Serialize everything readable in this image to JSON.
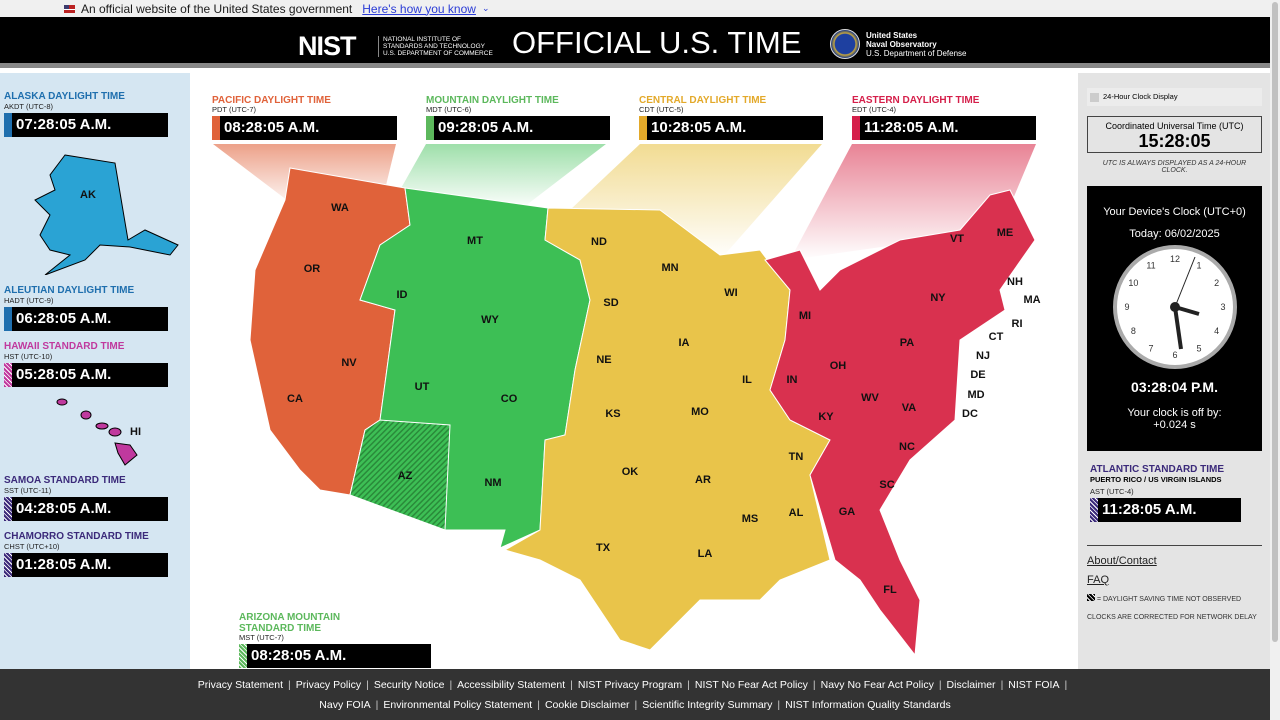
{
  "banner": {
    "text": "An official website of the United States government",
    "link": "Here's how you know"
  },
  "header": {
    "nist_logo": "NIST",
    "nist_sub": [
      "NATIONAL INSTITUTE OF",
      "STANDARDS AND TECHNOLOGY",
      "U.S. DEPARTMENT OF COMMERCE"
    ],
    "title": "OFFICIAL U.S. TIME",
    "usno": [
      "United States",
      "Naval Observatory",
      "U.S. Department of Defense"
    ]
  },
  "zones": {
    "alaska": {
      "name": "ALASKA DAYLIGHT TIME",
      "abbr": "AKDT (UTC-8)",
      "time": "07:28:05 A.M.",
      "color": "#1f6fae"
    },
    "aleutian": {
      "name": "ALEUTIAN DAYLIGHT TIME",
      "abbr": "HADT (UTC-9)",
      "time": "06:28:05 A.M.",
      "color": "#1f6fae"
    },
    "hawaii": {
      "name": "HAWAII STANDARD TIME",
      "abbr": "HST (UTC-10)",
      "time": "05:28:05 A.M.",
      "color": "#c0399e"
    },
    "samoa": {
      "name": "SAMOA STANDARD TIME",
      "abbr": "SST (UTC-11)",
      "time": "04:28:05 A.M.",
      "color": "#3b2a7a"
    },
    "chamorro": {
      "name": "CHAMORRO STANDARD TIME",
      "abbr": "CHST (UTC+10)",
      "time": "01:28:05 A.M.",
      "color": "#3b2a7a"
    },
    "pacific": {
      "name": "PACIFIC DAYLIGHT TIME",
      "abbr": "PDT (UTC-7)",
      "time": "08:28:05 A.M.",
      "color": "#e0623a"
    },
    "mountain": {
      "name": "MOUNTAIN DAYLIGHT TIME",
      "abbr": "MDT (UTC-6)",
      "time": "09:28:05 A.M.",
      "color": "#5cb85c"
    },
    "central": {
      "name": "CENTRAL DAYLIGHT TIME",
      "abbr": "CDT (UTC-5)",
      "time": "10:28:05 A.M.",
      "color": "#e3a92a"
    },
    "eastern": {
      "name": "EASTERN DAYLIGHT TIME",
      "abbr": "EDT (UTC-4)",
      "time": "11:28:05 A.M.",
      "color": "#d51f4a"
    },
    "arizona": {
      "name": "ARIZONA MOUNTAIN STANDARD TIME",
      "abbr": "MST (UTC-7)",
      "time": "08:28:05 A.M.",
      "color": "#5cb85c"
    },
    "atlantic": {
      "name": "ATLANTIC STANDARD TIME",
      "sub": "PUERTO RICO / US VIRGIN ISLANDS",
      "abbr": "AST (UTC-4)",
      "time": "11:28:05 A.M.",
      "color": "#3b2a7a"
    }
  },
  "map_labels": {
    "AK": "AK",
    "HI": "HI",
    "WA": "WA",
    "OR": "OR",
    "CA": "CA",
    "NV": "NV",
    "ID": "ID",
    "MT": "MT",
    "WY": "WY",
    "UT": "UT",
    "CO": "CO",
    "AZ": "AZ",
    "NM": "NM",
    "ND": "ND",
    "SD": "SD",
    "NE": "NE",
    "KS": "KS",
    "OK": "OK",
    "TX": "TX",
    "MN": "MN",
    "IA": "IA",
    "MO": "MO",
    "AR": "AR",
    "LA": "LA",
    "WI": "WI",
    "IL": "IL",
    "MS": "MS",
    "AL": "AL",
    "TN": "TN",
    "MI": "MI",
    "IN": "IN",
    "KY": "KY",
    "OH": "OH",
    "WV": "WV",
    "VA": "VA",
    "NC": "NC",
    "SC": "SC",
    "GA": "GA",
    "FL": "FL",
    "PA": "PA",
    "NY": "NY",
    "VT": "VT",
    "ME": "ME",
    "NH": "NH",
    "MA": "MA",
    "RI": "RI",
    "CT": "CT",
    "NJ": "NJ",
    "DE": "DE",
    "MD": "MD",
    "DC": "DC"
  },
  "zone_colors": {
    "pacific": "#e0623a",
    "mountain": "#3dbf55",
    "central": "#e9c44a",
    "eastern": "#d9314f",
    "alaska": "#2aa3d4",
    "hawaii": "#c0399e"
  },
  "sidebar": {
    "toggle_label": "24-Hour Clock Display",
    "toggle_checked": false,
    "utc_label": "Coordinated Universal Time (UTC)",
    "utc_time": "15:28:05",
    "utc_note": "UTC IS ALWAYS DISPLAYED AS A 24-HOUR CLOCK.",
    "device_title": "Your Device's Clock (UTC+0)",
    "today": "Today: 06/02/2025",
    "dial_numbers": [
      "12",
      "1",
      "2",
      "3",
      "4",
      "5",
      "6",
      "7",
      "8",
      "9",
      "10",
      "11"
    ],
    "device_time": "03:28:04 P.M.",
    "offset_label": "Your clock is off by:",
    "offset": "+0.024 s",
    "about": "About/Contact",
    "faq": "FAQ",
    "legend": "= DAYLIGHT SAVING TIME NOT OBSERVED",
    "note": "CLOCKS ARE CORRECTED FOR NETWORK DELAY"
  },
  "footer": {
    "row1": [
      "Privacy Statement",
      "Privacy Policy",
      "Security Notice",
      "Accessibility Statement",
      "NIST Privacy Program",
      "NIST No Fear Act Policy",
      "Navy No Fear Act Policy",
      "Disclaimer",
      "NIST FOIA"
    ],
    "row2": [
      "Navy FOIA",
      "Environmental Policy Statement",
      "Cookie Disclaimer",
      "Scientific Integrity Summary",
      "NIST Information Quality Standards"
    ]
  }
}
